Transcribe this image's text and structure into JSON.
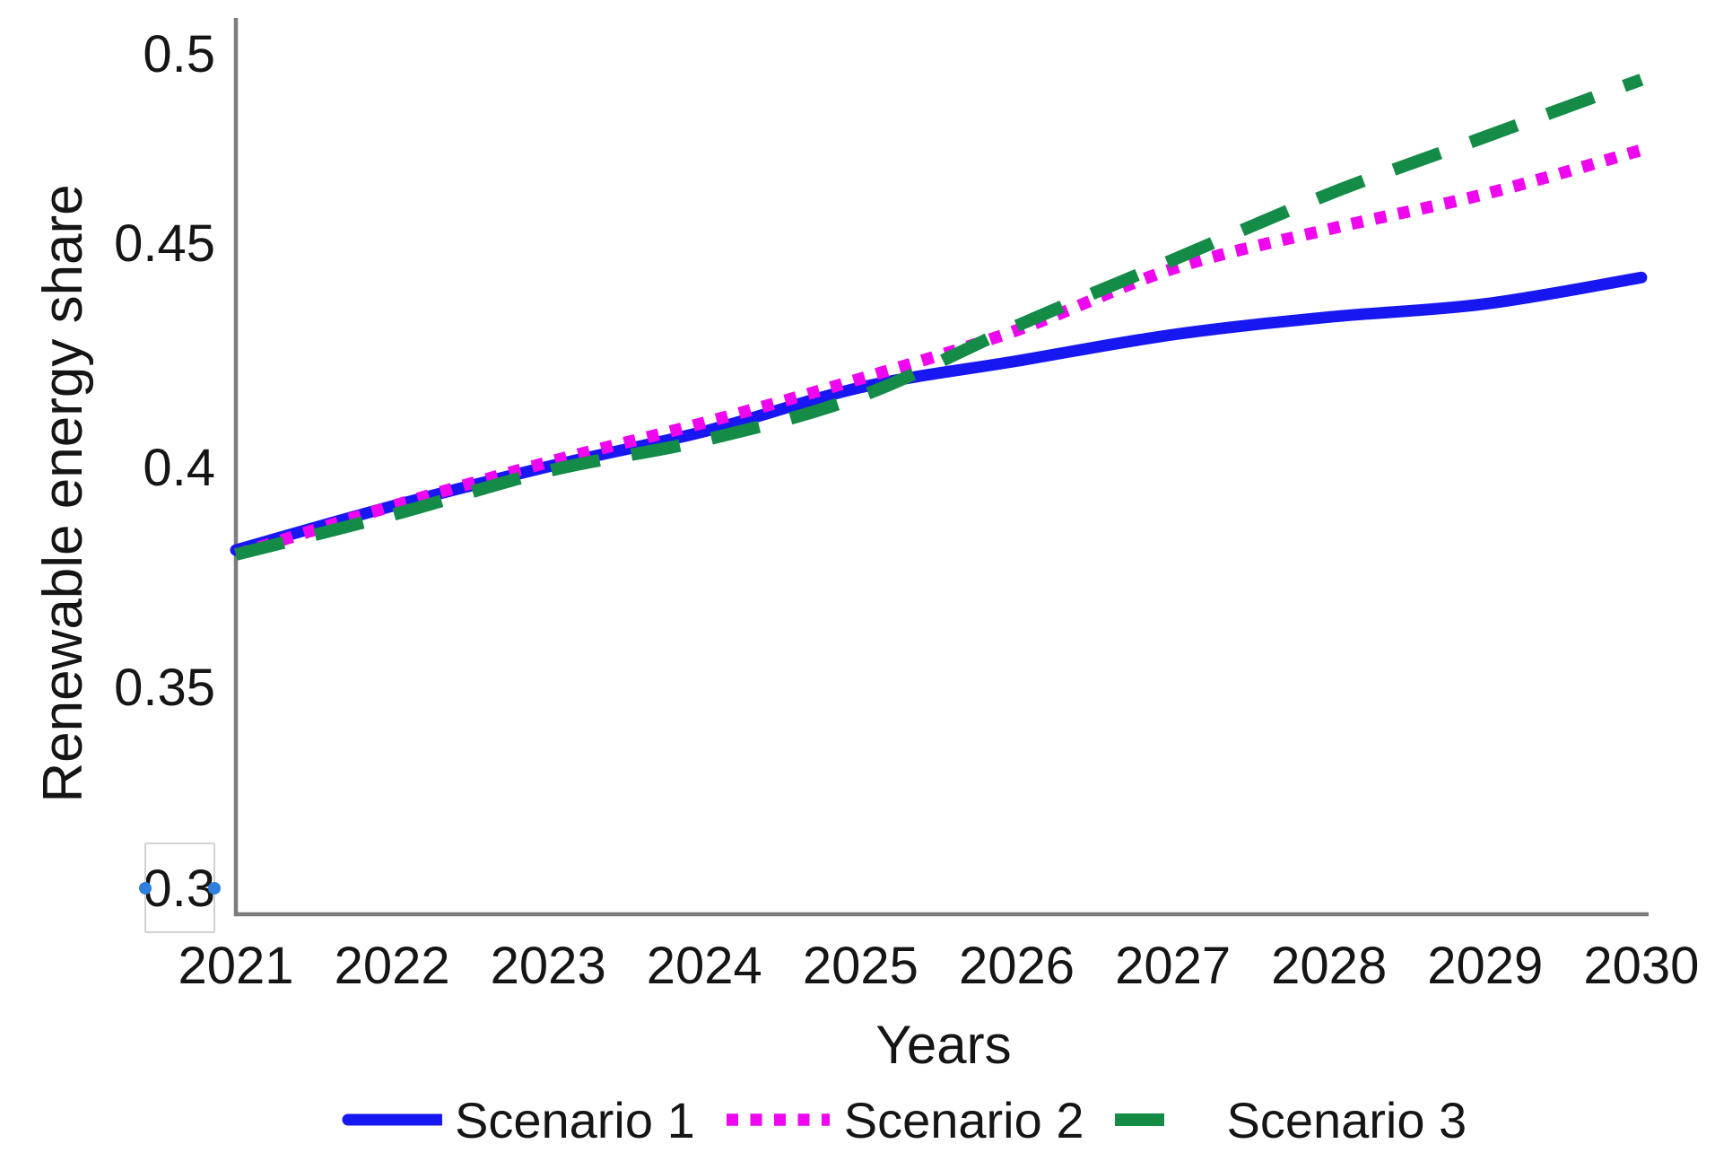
{
  "chart_data": {
    "type": "line",
    "title": "",
    "xlabel": "Years",
    "ylabel": "Renewable energy share",
    "x": [
      2021,
      2022,
      2023,
      2024,
      2025,
      2026,
      2027,
      2028,
      2029,
      2030
    ],
    "x_tick_labels": [
      "2021",
      "2022",
      "2023",
      "2024",
      "2025",
      "2026",
      "2027",
      "2028",
      "2029",
      "2030"
    ],
    "y_tick_labels": [
      "0.5",
      "0.45",
      "0.4",
      "0.35",
      "0.3"
    ],
    "y_tick_values": [
      0.5,
      0.45,
      0.4,
      0.35,
      0.3
    ],
    "ylim": [
      0.3,
      0.5
    ],
    "grid": false,
    "legend_position": "bottom",
    "series": [
      {
        "name": "Scenario 1",
        "style": "solid",
        "color": "#1717f2",
        "values": [
          0.381,
          0.391,
          0.4,
          0.408,
          0.418,
          0.424,
          0.43,
          0.434,
          0.437,
          0.443
        ]
      },
      {
        "name": "Scenario 2",
        "style": "dotted",
        "color": "#ee06ee",
        "values": [
          0.38,
          0.391,
          0.401,
          0.41,
          0.42,
          0.431,
          0.445,
          0.454,
          0.462,
          0.472
        ]
      },
      {
        "name": "Scenario 3",
        "style": "dashed",
        "color": "#148b46",
        "values": [
          0.38,
          0.389,
          0.399,
          0.406,
          0.416,
          0.432,
          0.447,
          0.462,
          0.475,
          0.488
        ]
      }
    ]
  },
  "editor_selection": {
    "selected_label": "0.3",
    "handle_color": "#2e7ee0",
    "box_border_color": "#d2d2d2"
  },
  "colors": {
    "axis": "#7c7c7c",
    "text": "#151515",
    "background": "#ffffff"
  }
}
